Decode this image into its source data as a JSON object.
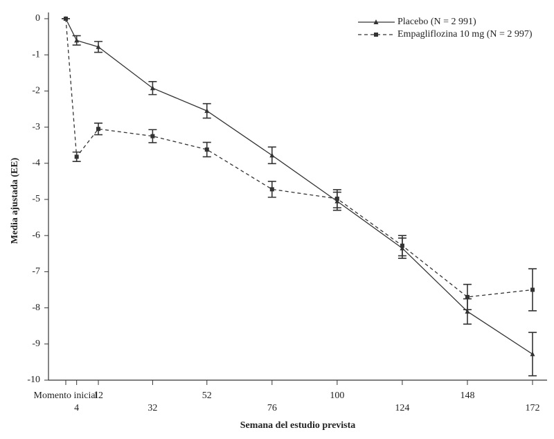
{
  "chart_data": {
    "type": "line",
    "xlabel": "Semana del estudio prevista",
    "ylabel": "Media ajustada (EE)",
    "x": [
      0,
      4,
      12,
      32,
      52,
      76,
      100,
      124,
      148,
      172
    ],
    "xlim": [
      0,
      172
    ],
    "xticks": [
      {
        "value": 0,
        "label": "Momento inicial"
      },
      4,
      12,
      32,
      52,
      76,
      100,
      124,
      148,
      172
    ],
    "ylim": [
      -10,
      0
    ],
    "yticks": [
      0,
      -1,
      -2,
      -3,
      -4,
      -5,
      -6,
      -7,
      -8,
      -9,
      -10
    ],
    "legend": "upper right",
    "series": [
      {
        "name": "Placebo (N = 2 991)",
        "color": "#333333",
        "marker": "triangle",
        "linestyle": "solid",
        "values": [
          0,
          -0.6,
          -0.78,
          -1.92,
          -2.55,
          -3.78,
          -5.05,
          -6.35,
          -8.1,
          -9.28
        ],
        "errors": [
          0,
          0.13,
          0.15,
          0.18,
          0.2,
          0.23,
          0.25,
          0.28,
          0.35,
          0.6
        ]
      },
      {
        "name": "Empagliflozina 10 mg (N = 2 997)",
        "color": "#333333",
        "marker": "square",
        "linestyle": "dashed",
        "values": [
          0,
          -3.82,
          -3.05,
          -3.25,
          -3.62,
          -4.72,
          -4.98,
          -6.28,
          -7.7,
          -7.5
        ],
        "errors": [
          0,
          0.13,
          0.16,
          0.18,
          0.2,
          0.22,
          0.25,
          0.28,
          0.35,
          0.58
        ]
      }
    ]
  }
}
